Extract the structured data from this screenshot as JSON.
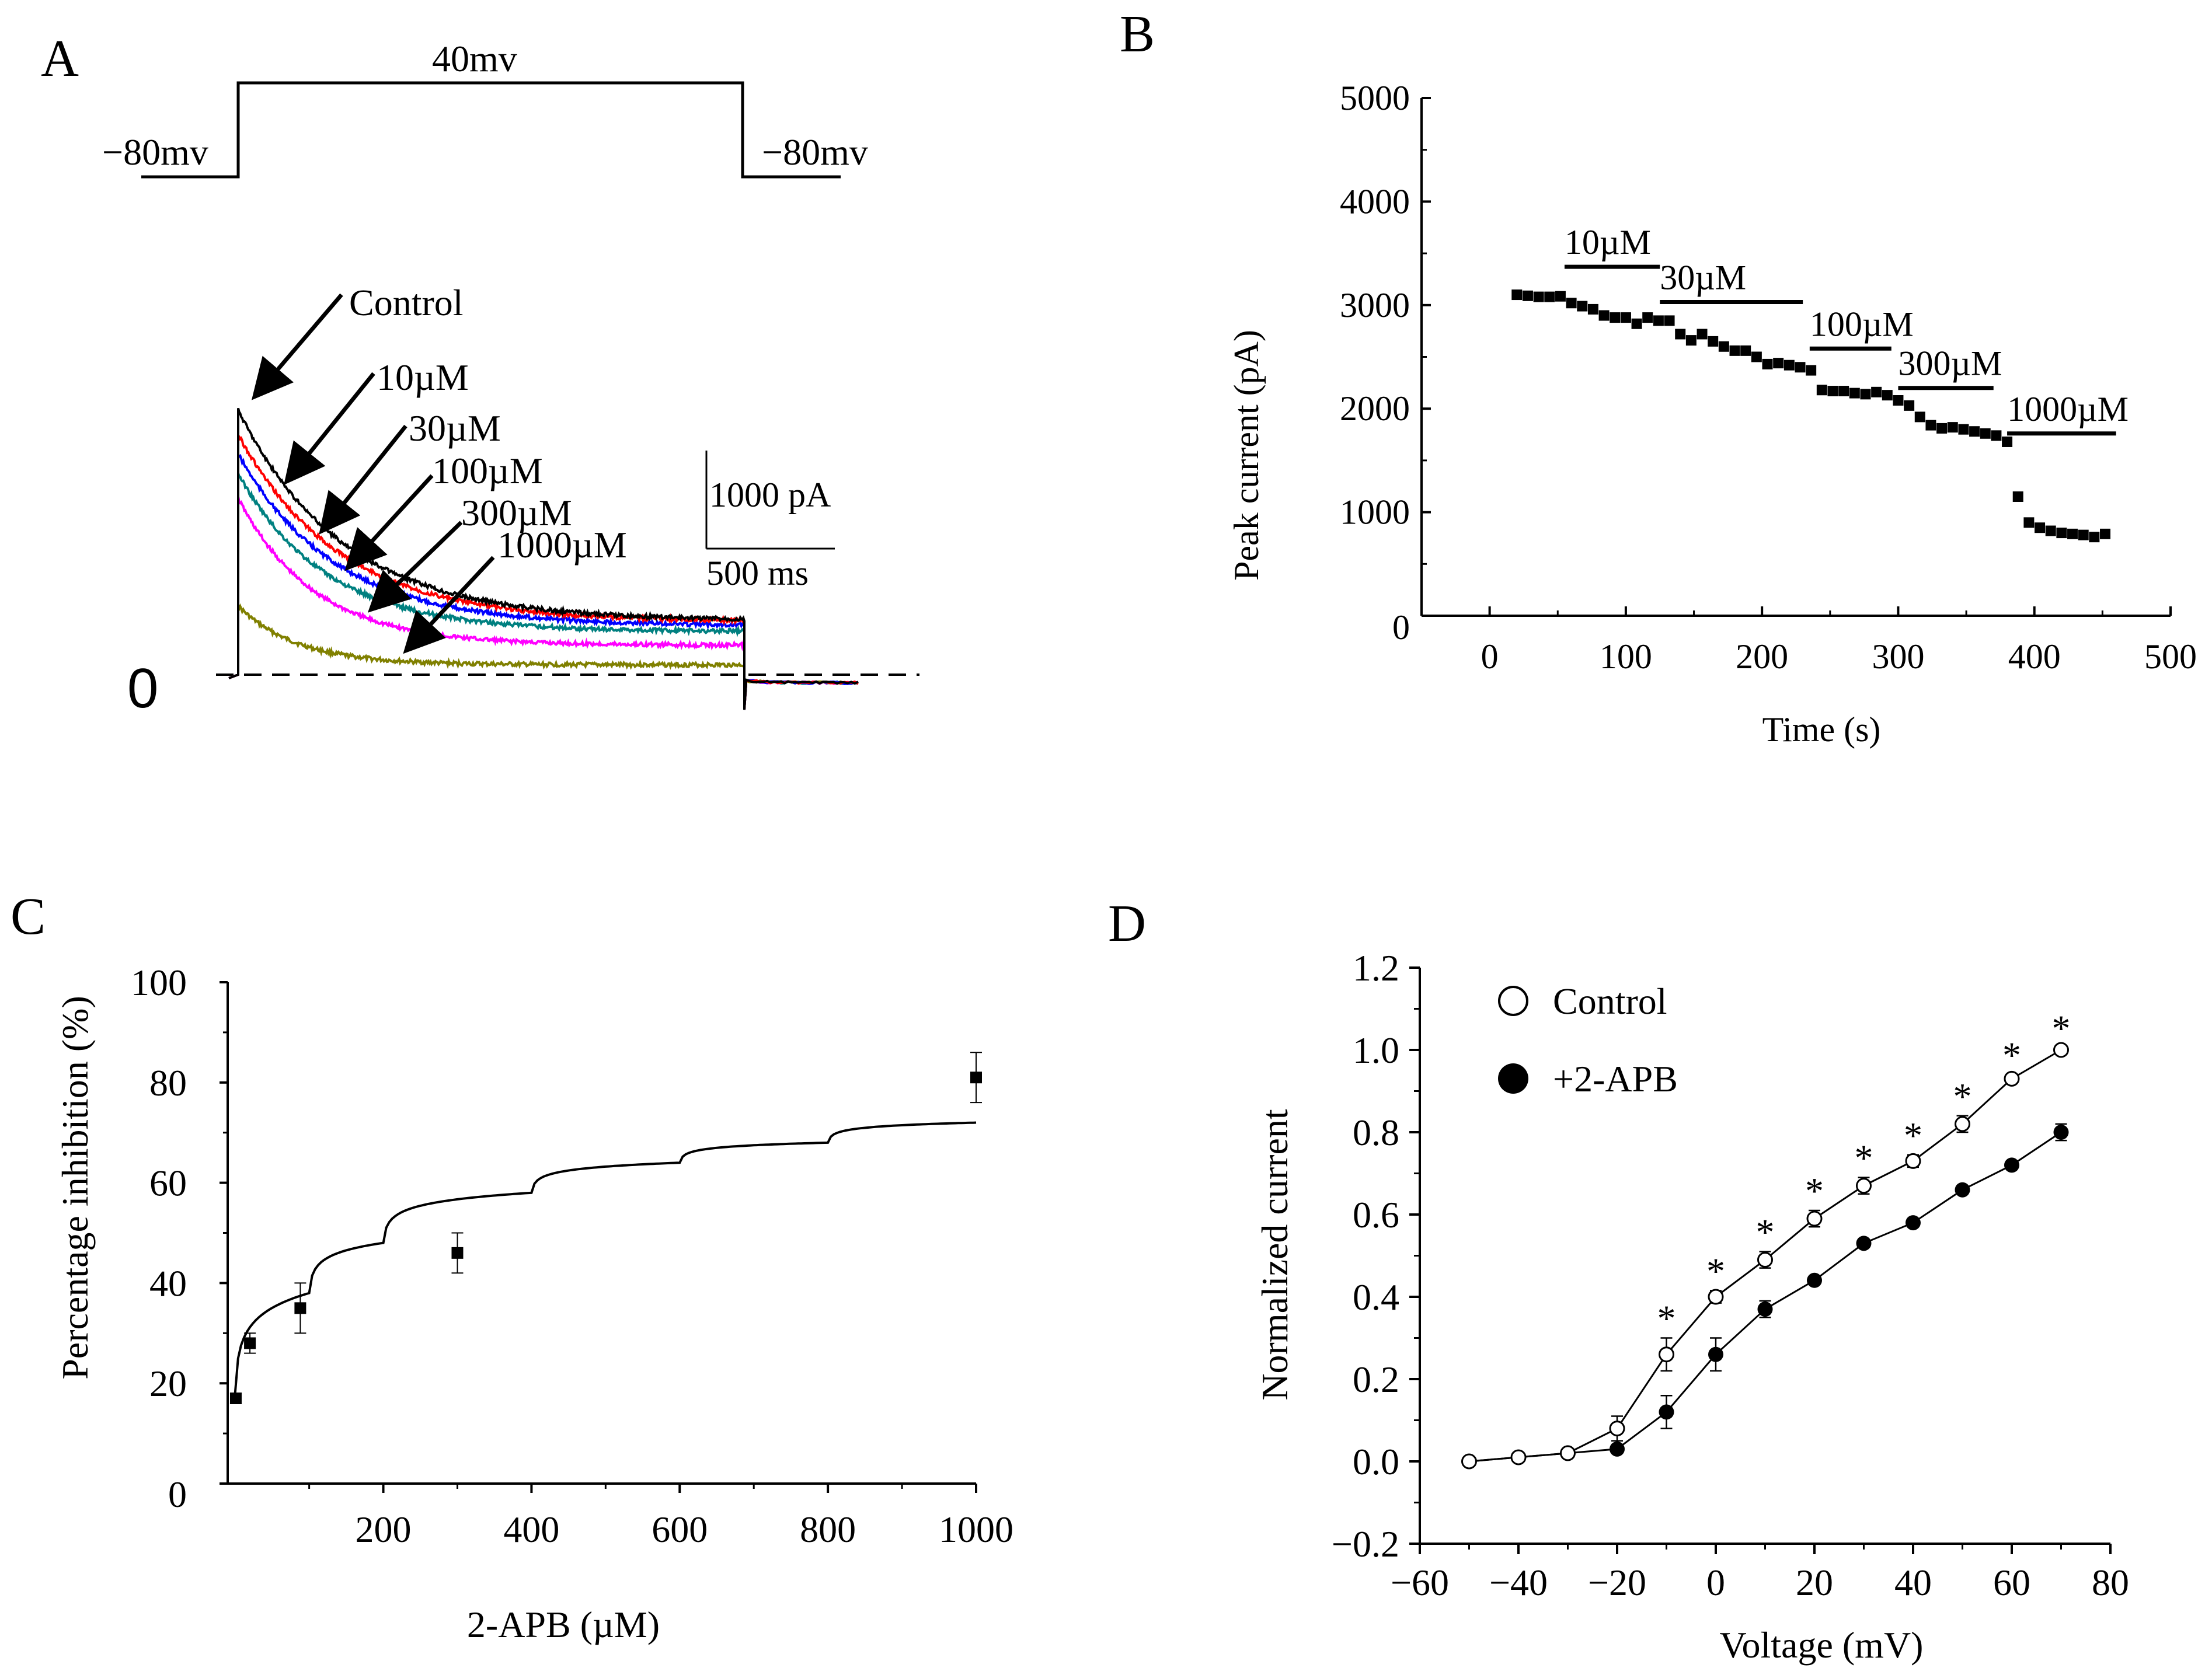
{
  "chart_data": [
    {
      "panel": "A",
      "type": "line",
      "title": "",
      "panel_label": "A",
      "protocol": {
        "holding_label_left": "−80mv",
        "step_label": "40mv",
        "holding_label_right": "−80mv"
      },
      "zero_label": "0",
      "scale_bar": {
        "current_label": "1000 pA",
        "time_label": "500 ms",
        "current_pA": 1000,
        "time_ms": 500
      },
      "time_range_ms": [
        0,
        3000
      ],
      "series": [
        {
          "name": "Control",
          "label": "Control",
          "color": "#000000",
          "peak_pA": 2700,
          "steady_pA": 550,
          "tau_ms": 620
        },
        {
          "name": "10µM",
          "label": "10µM",
          "color": "#ff0000",
          "peak_pA": 2450,
          "steady_pA": 540,
          "tau_ms": 600
        },
        {
          "name": "30µM",
          "label": "30µM",
          "color": "#0000ff",
          "peak_pA": 2250,
          "steady_pA": 500,
          "tau_ms": 570
        },
        {
          "name": "100µM",
          "label": "100µM",
          "color": "#008080",
          "peak_pA": 2050,
          "steady_pA": 440,
          "tau_ms": 520
        },
        {
          "name": "300µM",
          "label": "300µM",
          "color": "#ff00ff",
          "peak_pA": 1800,
          "steady_pA": 300,
          "tau_ms": 450
        },
        {
          "name": "1000µM",
          "label": "1000µM",
          "color": "#808000",
          "peak_pA": 700,
          "steady_pA": 100,
          "tau_ms": 350
        }
      ]
    },
    {
      "panel": "B",
      "type": "scatter",
      "panel_label": "B",
      "xlabel": "Time (s)",
      "ylabel": "Peak current  (pA)",
      "xlim": [
        -50,
        500
      ],
      "ylim": [
        0,
        5000
      ],
      "xticks": [
        0,
        100,
        200,
        300,
        400,
        500
      ],
      "yticks": [
        0,
        1000,
        2000,
        3000,
        4000,
        5000
      ],
      "xtick_labels": [
        "0",
        "100",
        "200",
        "300",
        "400",
        "500"
      ],
      "ytick_labels": [
        "0",
        "1000",
        "2000",
        "3000",
        "4000",
        "5000"
      ],
      "x": [
        20,
        28,
        36,
        44,
        52,
        60,
        68,
        76,
        84,
        92,
        100,
        108,
        116,
        124,
        132,
        140,
        148,
        156,
        164,
        172,
        180,
        188,
        196,
        204,
        212,
        220,
        228,
        236,
        244,
        252,
        260,
        268,
        276,
        284,
        292,
        300,
        308,
        316,
        324,
        332,
        340,
        348,
        356,
        364,
        372,
        380,
        388,
        396,
        404,
        412,
        420,
        428,
        436,
        444,
        452
      ],
      "values": [
        3100,
        3090,
        3080,
        3080,
        3085,
        3020,
        2990,
        2960,
        2900,
        2880,
        2880,
        2820,
        2880,
        2850,
        2850,
        2720,
        2660,
        2720,
        2650,
        2600,
        2560,
        2560,
        2500,
        2430,
        2440,
        2420,
        2400,
        2370,
        2180,
        2170,
        2170,
        2150,
        2140,
        2160,
        2130,
        2080,
        2030,
        1920,
        1840,
        1810,
        1820,
        1800,
        1780,
        1760,
        1740,
        1680,
        1150,
        900,
        850,
        820,
        800,
        790,
        780,
        760,
        790
      ],
      "annotations": [
        {
          "label": "10µM",
          "x_start": 55,
          "x_end": 125,
          "y": 3370
        },
        {
          "label": "30µM",
          "x_start": 125,
          "x_end": 230,
          "y": 3030
        },
        {
          "label": "100µM",
          "x_start": 235,
          "x_end": 295,
          "y": 2580
        },
        {
          "label": "300µM",
          "x_start": 300,
          "x_end": 370,
          "y": 2200
        },
        {
          "label": "1000µM",
          "x_start": 380,
          "x_end": 460,
          "y": 1760
        }
      ]
    },
    {
      "panel": "C",
      "type": "scatter",
      "panel_label": "C",
      "xlabel": "2-APB (µM)",
      "ylabel": "Percentage inhibition (%)",
      "xlim": [
        -10,
        1000
      ],
      "ylim": [
        0,
        100
      ],
      "xticks": [
        200,
        400,
        600,
        800,
        1000
      ],
      "yticks": [
        0,
        20,
        40,
        60,
        80,
        100
      ],
      "xtick_labels": [
        "200",
        "400",
        "600",
        "800",
        "1000"
      ],
      "ytick_labels": [
        "0",
        "20",
        "40",
        "60",
        "80",
        "100"
      ],
      "x": [
        1,
        20,
        88,
        300,
        1000
      ],
      "values": [
        17,
        28,
        35,
        46,
        81
      ],
      "errors": [
        1,
        2,
        5,
        4,
        5
      ],
      "fit": {
        "type": "log",
        "description": "fitted curve",
        "y_at": {
          "0": 18,
          "100": 38,
          "200": 48,
          "400": 58,
          "600": 64,
          "800": 68,
          "1000": 72
        }
      }
    },
    {
      "panel": "D",
      "type": "line",
      "panel_label": "D",
      "xlabel": "Voltage (mV)",
      "ylabel": "Normalized current",
      "xlim": [
        -60,
        80
      ],
      "ylim": [
        -0.2,
        1.2
      ],
      "xticks": [
        -60,
        -40,
        -20,
        0,
        20,
        40,
        60,
        80
      ],
      "yticks": [
        -0.2,
        0.0,
        0.2,
        0.4,
        0.6,
        0.8,
        1.0,
        1.2
      ],
      "xtick_labels": [
        "−60",
        "−40",
        "−20",
        "0",
        "20",
        "40",
        "60",
        "80"
      ],
      "ytick_labels": [
        "−0.2",
        "0.0",
        "0.2",
        "0.4",
        "0.6",
        "0.8",
        "1.0",
        "1.2"
      ],
      "x": [
        -50,
        -40,
        -30,
        -20,
        -10,
        0,
        10,
        20,
        30,
        40,
        50,
        60,
        70
      ],
      "series": [
        {
          "name": "Control",
          "marker": "open-circle",
          "values": [
            0.0,
            0.01,
            0.02,
            0.08,
            0.26,
            0.4,
            0.49,
            0.59,
            0.67,
            0.73,
            0.82,
            0.93,
            1.0
          ],
          "errors": [
            0.01,
            0.005,
            0.005,
            0.03,
            0.04,
            0.015,
            0.02,
            0.02,
            0.02,
            0.015,
            0.02,
            0.01,
            0.005
          ]
        },
        {
          "name": "+2-APB",
          "marker": "filled-circle",
          "values": [
            0.0,
            0.01,
            0.02,
            0.03,
            0.12,
            0.26,
            0.37,
            0.44,
            0.53,
            0.58,
            0.66,
            0.72,
            0.8
          ],
          "errors": [
            0.005,
            0.005,
            0.005,
            0.01,
            0.04,
            0.04,
            0.02,
            0.01,
            0.01,
            0.01,
            0.01,
            0.01,
            0.02
          ]
        }
      ],
      "significance": {
        "symbol": "*",
        "at_x": [
          -10,
          0,
          10,
          20,
          30,
          40,
          50,
          60,
          70
        ]
      },
      "legend": {
        "placement": "top-left",
        "entries": [
          "Control",
          "+2-APB"
        ]
      }
    }
  ]
}
